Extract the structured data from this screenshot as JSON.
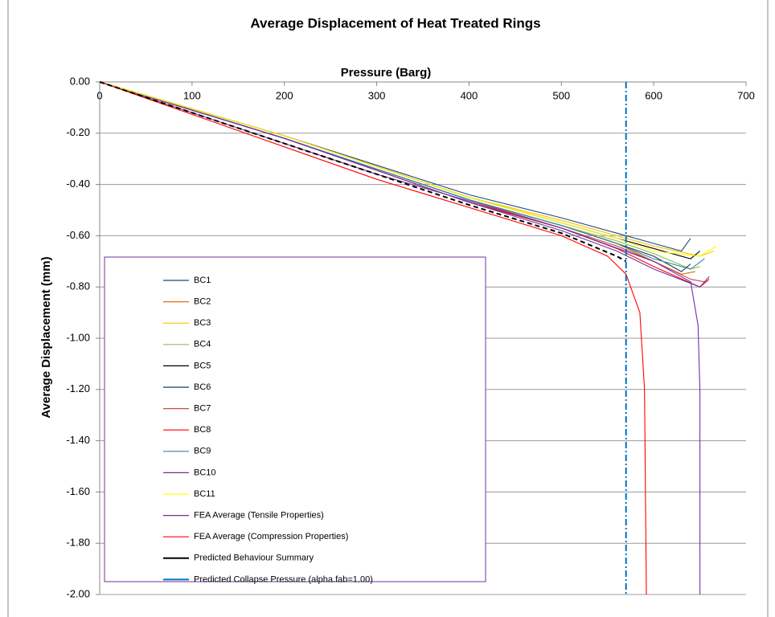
{
  "chart_data": {
    "type": "line",
    "title": "Average Displacement of Heat Treated Rings",
    "xlabel": "Pressure (Barg)",
    "ylabel": "Average Displacement (mm)",
    "xlim": [
      0,
      700
    ],
    "xticks": [
      0,
      100,
      200,
      300,
      400,
      500,
      600,
      700
    ],
    "ylim": [
      -2,
      0
    ],
    "yticks": [
      {
        "value": 0,
        "label": "0.00"
      },
      {
        "value": -0.2,
        "label": "-0.20"
      },
      {
        "value": -0.4,
        "label": "-0.40"
      },
      {
        "value": -0.6,
        "label": "-0.60"
      },
      {
        "value": -0.8,
        "label": "-0.80"
      },
      {
        "value": -1,
        "label": "-1.00"
      },
      {
        "value": -1.2,
        "label": "-1.20"
      },
      {
        "value": -1.4,
        "label": "-1.40"
      },
      {
        "value": -1.6,
        "label": "-1.60"
      },
      {
        "value": -1.8,
        "label": "-1.80"
      },
      {
        "value": -2,
        "label": "-2.00"
      }
    ],
    "grid": true,
    "legend": "lower left",
    "series": [
      {
        "name": "BC1",
        "color": "#1f497d",
        "x": [
          0,
          200,
          400,
          500,
          560,
          600,
          630,
          640
        ],
        "values": [
          0,
          -0.21,
          -0.44,
          -0.53,
          -0.59,
          -0.63,
          -0.66,
          -0.61
        ]
      },
      {
        "name": "BC2",
        "color": "#e46c0a",
        "x": [
          0,
          200,
          400,
          500,
          560,
          600,
          630,
          645
        ],
        "values": [
          0,
          -0.22,
          -0.46,
          -0.56,
          -0.63,
          -0.7,
          -0.75,
          -0.74
        ]
      },
      {
        "name": "BC3",
        "color": "#ffc000",
        "x": [
          0,
          200,
          400,
          500,
          560,
          600,
          650,
          665
        ],
        "values": [
          0,
          -0.21,
          -0.45,
          -0.54,
          -0.6,
          -0.64,
          -0.68,
          -0.66
        ]
      },
      {
        "name": "BC4",
        "color": "#9bbb59",
        "x": [
          0,
          200,
          400,
          500,
          560,
          600,
          640,
          650
        ],
        "values": [
          0,
          -0.22,
          -0.46,
          -0.56,
          -0.62,
          -0.67,
          -0.73,
          -0.72
        ]
      },
      {
        "name": "BC5",
        "color": "#000000",
        "x": [
          0,
          200,
          400,
          500,
          560,
          600,
          640,
          650
        ],
        "values": [
          0,
          -0.21,
          -0.45,
          -0.55,
          -0.61,
          -0.65,
          -0.69,
          -0.66
        ]
      },
      {
        "name": "BC6",
        "color": "#17375e",
        "x": [
          0,
          200,
          400,
          500,
          560,
          600,
          630,
          640
        ],
        "values": [
          0,
          -0.22,
          -0.46,
          -0.56,
          -0.63,
          -0.68,
          -0.74,
          -0.71
        ]
      },
      {
        "name": "BC7",
        "color": "#c0504d",
        "x": [
          0,
          200,
          400,
          500,
          560,
          600,
          640,
          655
        ],
        "values": [
          0,
          -0.22,
          -0.46,
          -0.57,
          -0.64,
          -0.7,
          -0.77,
          -0.78
        ]
      },
      {
        "name": "BC8",
        "color": "#ff0000",
        "x": [
          0,
          200,
          400,
          500,
          560,
          600,
          650,
          660
        ],
        "values": [
          0,
          -0.22,
          -0.47,
          -0.57,
          -0.65,
          -0.72,
          -0.8,
          -0.77
        ]
      },
      {
        "name": "BC9",
        "color": "#31859c",
        "x": [
          0,
          200,
          400,
          500,
          560,
          600,
          640,
          655
        ],
        "values": [
          0,
          -0.22,
          -0.46,
          -0.56,
          -0.63,
          -0.69,
          -0.73,
          -0.69
        ]
      },
      {
        "name": "BC10",
        "color": "#7030a0",
        "x": [
          0,
          200,
          400,
          500,
          560,
          600,
          650,
          660
        ],
        "values": [
          0,
          -0.22,
          -0.47,
          -0.58,
          -0.66,
          -0.73,
          -0.8,
          -0.76
        ]
      },
      {
        "name": "BC11",
        "color": "#ffff00",
        "x": [
          0,
          200,
          400,
          500,
          560,
          600,
          650,
          668
        ],
        "values": [
          0,
          -0.21,
          -0.45,
          -0.55,
          -0.61,
          -0.66,
          -0.68,
          -0.64
        ]
      },
      {
        "name": "FEA Average (Tensile Properties)",
        "color": "#7030a0",
        "x": [
          0,
          300,
          500,
          600,
          640,
          648,
          650,
          650
        ],
        "values": [
          0,
          -0.36,
          -0.57,
          -0.7,
          -0.78,
          -0.95,
          -1.2,
          -2
        ]
      },
      {
        "name": "FEA Average (Compression Properties)",
        "color": "#ff0000",
        "x": [
          0,
          300,
          500,
          550,
          570,
          585,
          590,
          592
        ],
        "values": [
          0,
          -0.38,
          -0.6,
          -0.68,
          -0.75,
          -0.9,
          -1.2,
          -2
        ]
      },
      {
        "name": "Predicted Behaviour Summary",
        "color": "#000000",
        "dash": "6,4",
        "x": [
          0,
          200,
          400,
          500,
          560,
          570
        ],
        "values": [
          0,
          -0.24,
          -0.48,
          -0.59,
          -0.68,
          -0.7
        ]
      },
      {
        "name": "Predicted Collapse Pressure (alpha.fab=1.00)",
        "color": "#0070c0",
        "dash": "8,3,2,3",
        "x": [
          570,
          570
        ],
        "values": [
          0,
          -2
        ]
      }
    ]
  }
}
